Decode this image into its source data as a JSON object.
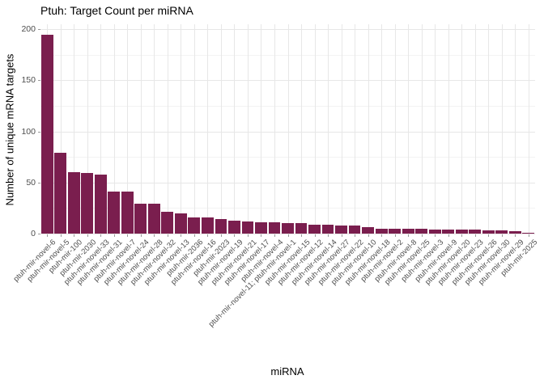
{
  "chart_data": {
    "type": "bar",
    "title": "Ptuh: Target Count per miRNA",
    "xlabel": "miRNA",
    "ylabel": "Number of unique mRNA targets",
    "ylim": [
      0,
      205
    ],
    "yticks": [
      0,
      50,
      100,
      150,
      200
    ],
    "grid": true,
    "legend": false,
    "categories": [
      "ptuh-mir-novel-6",
      "ptuh-mir-novel-5",
      "ptuh-mir-100",
      "ptuh-mir-2030",
      "ptuh-mir-novel-33",
      "ptuh-mir-novel-31",
      "ptuh-mir-novel-7",
      "ptuh-mir-novel-24",
      "ptuh-mir-novel-28",
      "ptuh-mir-novel-32",
      "ptuh-mir-novel-13",
      "ptuh-mir-2036",
      "ptuh-mir-novel-16",
      "ptuh-mir-2023",
      "ptuh-mir-novel-19",
      "ptuh-mir-novel-21",
      "ptuh-mir-novel-17",
      "ptuh-mir-novel-4",
      "ptuh-mir-novel-11; ptuh-mir-novel-1",
      "ptuh-mir-novel-15",
      "ptuh-mir-novel-12",
      "ptuh-mir-novel-14",
      "ptuh-mir-novel-27",
      "ptuh-mir-novel-22",
      "ptuh-mir-novel-10",
      "ptuh-mir-novel-18",
      "ptuh-mir-novel-2",
      "ptuh-mir-novel-8",
      "ptuh-mir-novel-25",
      "ptuh-mir-novel-3",
      "ptuh-mir-novel-9",
      "ptuh-mir-novel-20",
      "ptuh-mir-novel-23",
      "ptuh-mir-novel-26",
      "ptuh-mir-novel-30",
      "ptuh-mir-novel-29",
      "ptuh-mir-2025"
    ],
    "values": [
      195,
      79,
      60,
      59,
      58,
      41,
      41,
      29,
      29,
      21,
      20,
      16,
      16,
      14,
      13,
      12,
      11,
      11,
      10,
      10,
      9,
      9,
      8,
      8,
      6,
      5,
      5,
      5,
      5,
      4,
      4,
      4,
      4,
      3,
      3,
      2,
      1
    ],
    "style": {
      "bar_color": "#7a1e4e",
      "grid_major": "#e7e7e7",
      "grid_minor": "#f3f3f3",
      "tick_label_color": "#4d4d4d",
      "title_color": "#000000",
      "background": "#ffffff"
    }
  }
}
